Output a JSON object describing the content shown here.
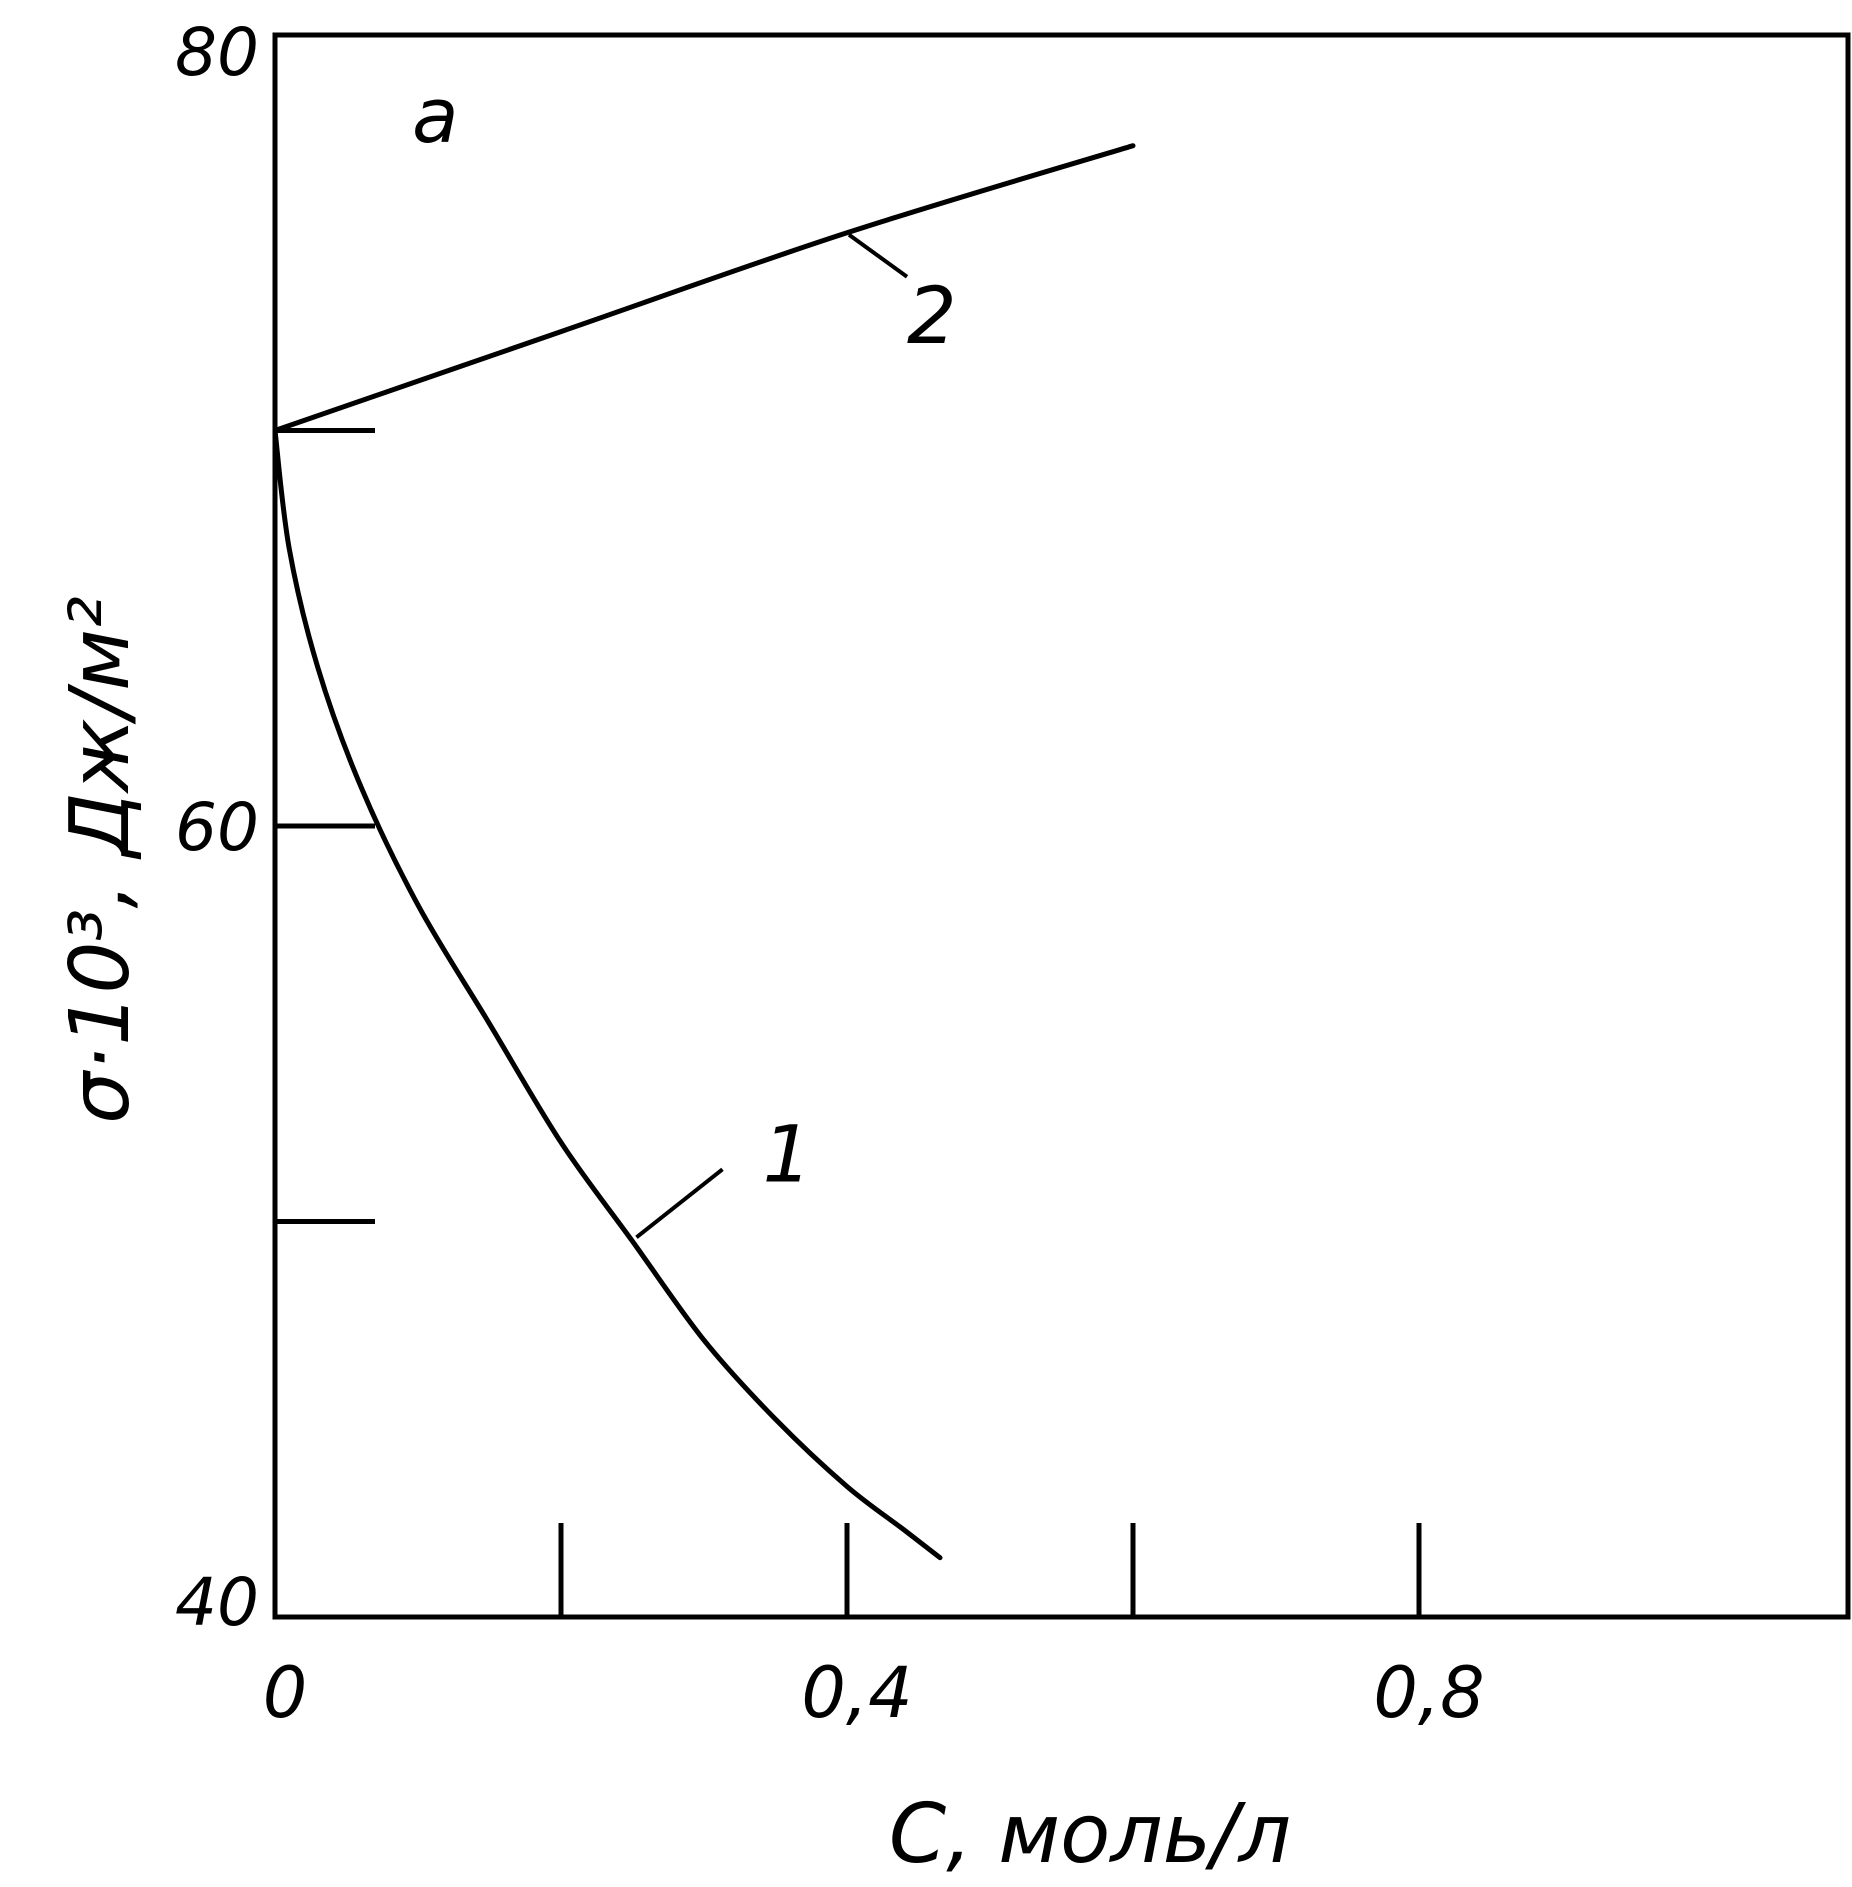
{
  "chart_data": {
    "type": "line",
    "panel_label": "a",
    "xlabel": "C, моль/л",
    "ylabel": "σ·10³, Дж/м²",
    "xlim": [
      0,
      1.1
    ],
    "ylim": [
      40,
      80
    ],
    "x_tick_labels": [
      {
        "value": 0,
        "label": "0"
      },
      {
        "value": 0.4,
        "label": "0,4"
      },
      {
        "value": 0.8,
        "label": "0,8"
      }
    ],
    "y_tick_labels": [
      {
        "value": 40,
        "label": "40"
      },
      {
        "value": 60,
        "label": "60"
      },
      {
        "value": 80,
        "label": "80"
      }
    ],
    "x_minor_ticks": [
      0.2,
      0.4,
      0.6,
      0.8
    ],
    "y_minor_ticks": [
      50,
      60,
      70
    ],
    "grid": false,
    "series": [
      {
        "name": "1",
        "x": [
          0,
          0.01,
          0.03,
          0.06,
          0.1,
          0.15,
          0.2,
          0.25,
          0.3,
          0.35,
          0.4,
          0.44,
          0.465
        ],
        "y": [
          70,
          67,
          64,
          61,
          58,
          55,
          52,
          49.5,
          47,
          45,
          43.3,
          42.2,
          41.5
        ]
      },
      {
        "name": "2",
        "x": [
          0,
          0.2,
          0.4,
          0.6
        ],
        "y": [
          70,
          72.5,
          75,
          77.2
        ]
      }
    ]
  }
}
